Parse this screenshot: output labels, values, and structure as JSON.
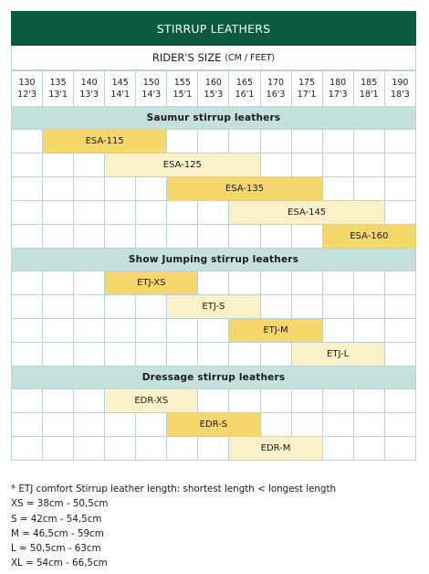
{
  "title": "STIRRUP LEATHERS",
  "subtitle": {
    "main": "RIDER'S SIZE",
    "units": "(CM / FEET)"
  },
  "sizes": [
    {
      "cm": "130",
      "ft": "12'3"
    },
    {
      "cm": "135",
      "ft": "13'1"
    },
    {
      "cm": "140",
      "ft": "13'3"
    },
    {
      "cm": "145",
      "ft": "14'1"
    },
    {
      "cm": "150",
      "ft": "14'3"
    },
    {
      "cm": "155",
      "ft": "15'1"
    },
    {
      "cm": "160",
      "ft": "15'3"
    },
    {
      "cm": "165",
      "ft": "16'1"
    },
    {
      "cm": "170",
      "ft": "16'3"
    },
    {
      "cm": "175",
      "ft": "17'1"
    },
    {
      "cm": "180",
      "ft": "17'3"
    },
    {
      "cm": "185",
      "ft": "18'1"
    },
    {
      "cm": "190",
      "ft": "18'3"
    }
  ],
  "colors": {
    "header": "#0c5a3e",
    "section": "#c5e1dc",
    "bar_dark": "#f5d76b",
    "bar_light": "#faf1c8",
    "grid": "#bcd3d3"
  },
  "sections": [
    {
      "title": "Saumur stirrup leathers",
      "rows": [
        {
          "label": "ESA-115",
          "from": "135",
          "to": "150",
          "shade": "dark"
        },
        {
          "label": "ESA-125",
          "from": "145",
          "to": "165",
          "shade": "light"
        },
        {
          "label": "ESA-135",
          "from": "155",
          "to": "175",
          "shade": "dark"
        },
        {
          "label": "ESA-145",
          "from": "165",
          "to": "185",
          "shade": "light"
        },
        {
          "label": "ESA-160",
          "from": "180",
          "to": "190",
          "shade": "dark"
        }
      ]
    },
    {
      "title": "Show Jumping stirrup leathers",
      "rows": [
        {
          "label": "ETJ-XS",
          "from": "145",
          "to": "155",
          "shade": "dark"
        },
        {
          "label": "ETJ-S",
          "from": "155",
          "to": "165",
          "shade": "light"
        },
        {
          "label": "ETJ-M",
          "from": "165",
          "to": "175",
          "shade": "dark"
        },
        {
          "label": "ETJ-L",
          "from": "175",
          "to": "185",
          "shade": "light"
        }
      ]
    },
    {
      "title": "Dressage stirrup leathers",
      "rows": [
        {
          "label": "EDR-XS",
          "from": "145",
          "to": "155",
          "shade": "light"
        },
        {
          "label": "EDR-S",
          "from": "155",
          "to": "165",
          "shade": "dark"
        },
        {
          "label": "EDR-M",
          "from": "165",
          "to": "175",
          "shade": "light"
        }
      ]
    }
  ],
  "footnotes": [
    "* ETJ comfort Stirrup leather length: shortest length < longest length",
    "XS = 38cm - 50,5cm",
    "S = 42cm - 54,5cm",
    "M = 46,5cm - 59cm",
    "L = 50,5cm - 63cm",
    "XL = 54cm - 66,5cm"
  ]
}
